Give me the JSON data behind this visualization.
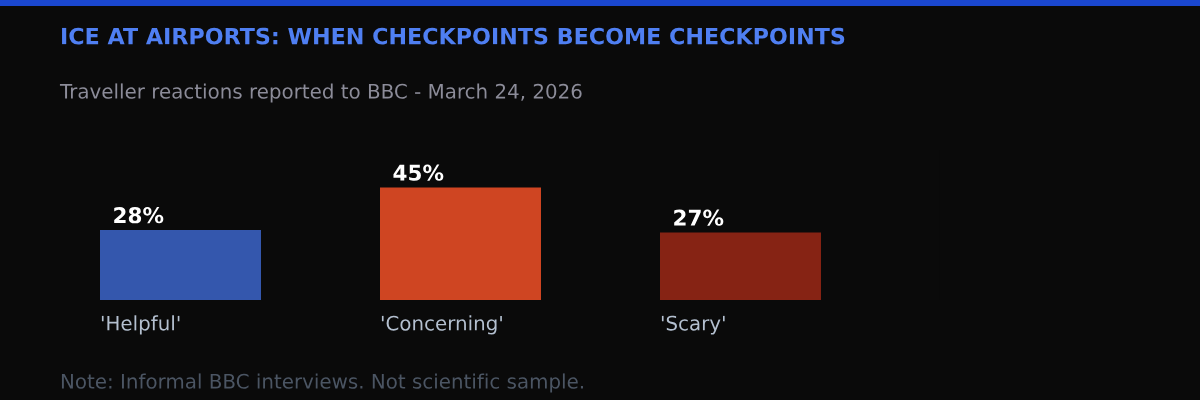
{
  "chart_data": {
    "type": "bar",
    "title": "ICE AT AIRPORTS: WHEN CHECKPOINTS BECOME CHECKPOINTS",
    "subtitle": "Traveller reactions reported to BBC - March 24, 2026",
    "categories": [
      "'Helpful'",
      "'Concerning'",
      "'Scary'"
    ],
    "values": [
      28,
      45,
      27
    ],
    "colors": [
      "#3457ad",
      "#cf4522",
      "#862314"
    ],
    "value_labels": [
      "28%",
      "45%",
      "27%"
    ],
    "tick_labels": "x",
    "annotations": [
      "Note: Informal BBC interviews. Not scientific sample."
    ]
  }
}
